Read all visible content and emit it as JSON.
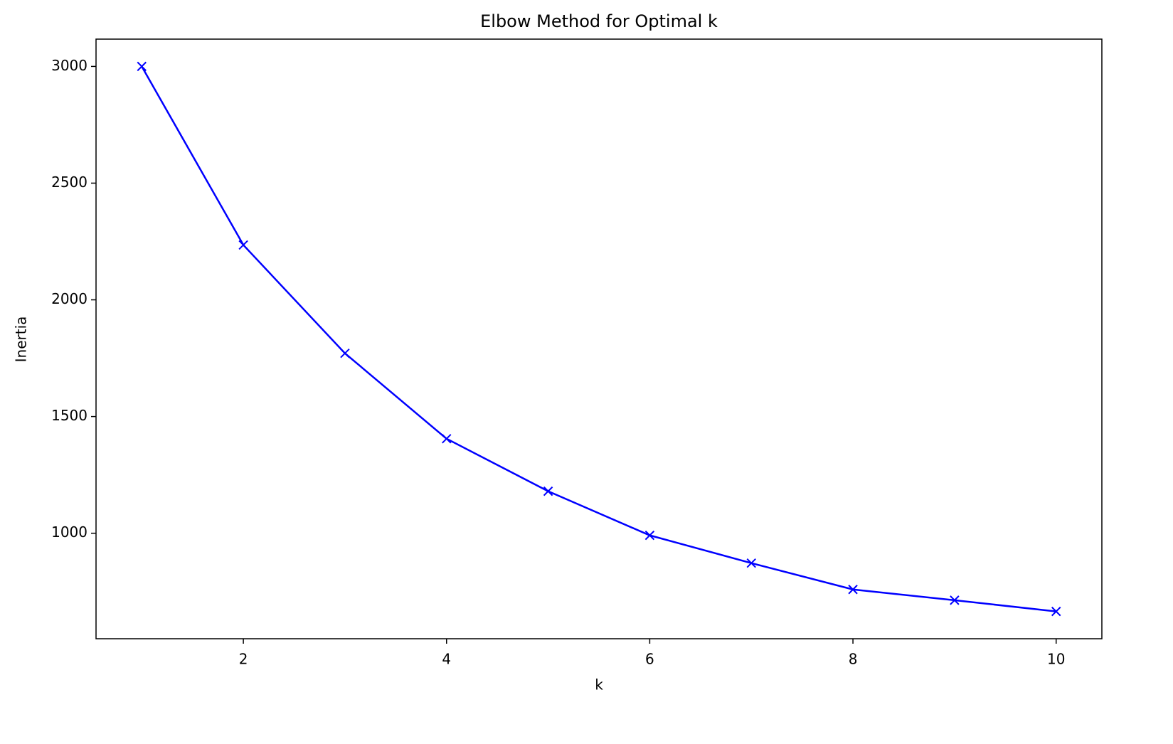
{
  "chart_data": {
    "type": "line",
    "title": "Elbow Method for Optimal k",
    "x_label": "k",
    "y_label": "Inertia",
    "x": [
      1,
      2,
      3,
      4,
      5,
      6,
      7,
      8,
      9,
      10
    ],
    "series": [
      {
        "name": "Inertia",
        "color": "#0000ff",
        "values": [
          3000,
          2235,
          1771,
          1405,
          1180,
          991,
          872,
          759,
          713,
          665
        ]
      }
    ],
    "xlim": [
      0.55,
      10.45
    ],
    "xticks": [
      2,
      4,
      6,
      8,
      10
    ],
    "ylim": [
      548,
      3117
    ],
    "yticks": [
      1000,
      1500,
      2000,
      2500,
      3000
    ],
    "marker": "x",
    "grid": false
  }
}
